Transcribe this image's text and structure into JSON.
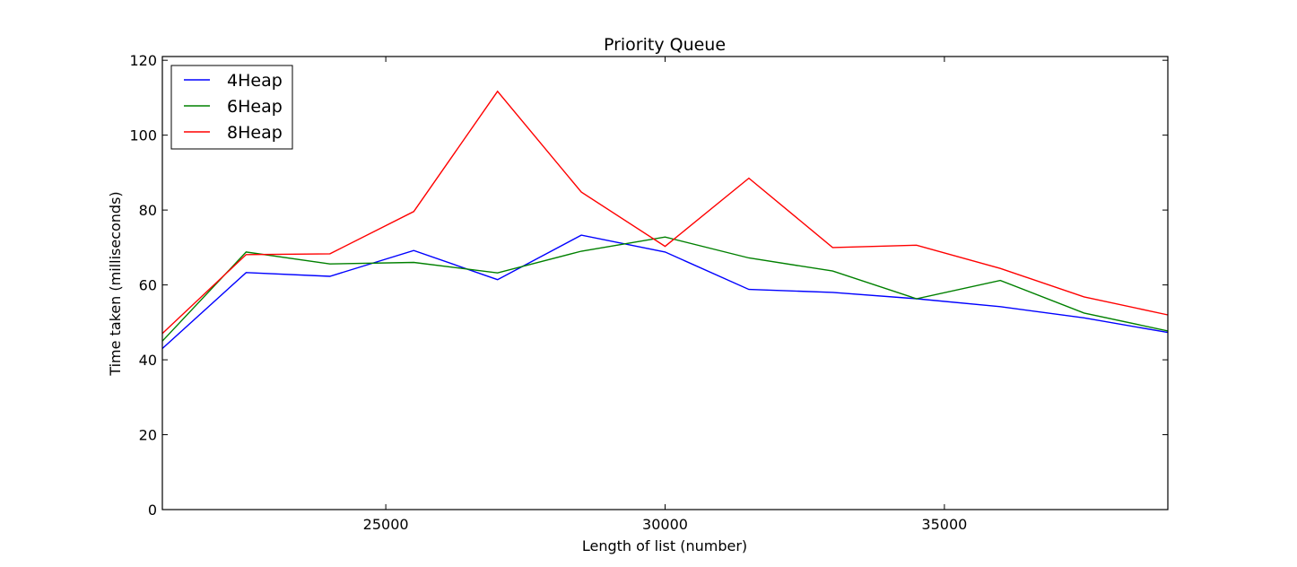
{
  "chart_data": {
    "type": "line",
    "title": "Priority Queue",
    "xlabel": "Length of list (number)",
    "ylabel": "Time taken (milliseconds)",
    "xlim": [
      21000,
      39000
    ],
    "ylim": [
      0,
      121
    ],
    "xticks": [
      25000,
      30000,
      35000
    ],
    "yticks": [
      0,
      20,
      40,
      60,
      80,
      100,
      120
    ],
    "x": [
      21000,
      22500,
      24000,
      25500,
      27000,
      28500,
      30000,
      31500,
      33000,
      34500,
      36000,
      37500,
      39000
    ],
    "series": [
      {
        "name": "4Heap",
        "color": "#0000ff",
        "values": [
          43.0,
          63.3,
          62.3,
          69.2,
          61.4,
          73.3,
          68.8,
          58.8,
          58.0,
          56.3,
          54.2,
          51.2,
          47.3
        ]
      },
      {
        "name": "6Heap",
        "color": "#008000",
        "values": [
          45.0,
          68.8,
          65.6,
          66.0,
          63.2,
          69.0,
          72.8,
          67.2,
          63.7,
          56.3,
          61.2,
          52.5,
          47.7
        ]
      },
      {
        "name": "8Heap",
        "color": "#ff0000",
        "values": [
          47.0,
          68.1,
          68.3,
          79.6,
          111.7,
          84.8,
          70.3,
          88.5,
          70.0,
          70.6,
          64.4,
          56.8,
          52.0
        ]
      }
    ],
    "legend": {
      "position": "top-left"
    },
    "grid": false
  }
}
